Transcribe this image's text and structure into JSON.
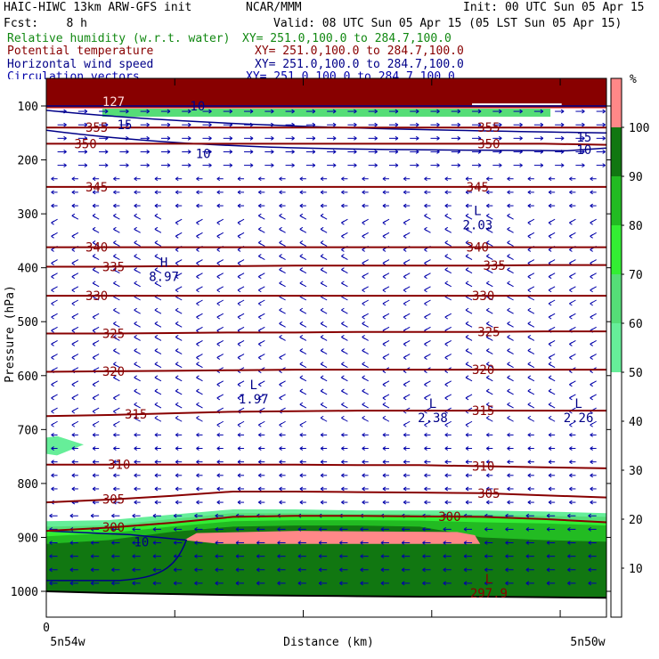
{
  "header": {
    "model_title": "HAIC-HIWC 13km ARW-GFS init",
    "org": "NCAR/MMM",
    "init": "Init: 00 UTC Sun 05 Apr 15",
    "fcst": "Fcst:    8 h",
    "valid": "Valid: 08 UTC Sun 05 Apr 15 (05 LST Sun 05 Apr 15)",
    "fields": [
      {
        "name": "Relative humidity (w.r.t. water)",
        "xy": "XY= 251.0,100.0 to 284.7,100.0",
        "color": "#118811"
      },
      {
        "name": "Potential temperature",
        "xy": "XY= 251.0,100.0 to 284.7,100.0",
        "color": "#880000"
      },
      {
        "name": "Horizontal wind speed",
        "xy": "XY= 251.0,100.0 to 284.7,100.0",
        "color": "#000088"
      },
      {
        "name": "Circulation vectors",
        "xy": "XY= 251.0,100.0 to 284.7,100.0",
        "color": "#0000aa"
      }
    ]
  },
  "chart_data": {
    "type": "cross-section",
    "ylabel": "Pressure (hPa)",
    "xlabel": "Distance (km)",
    "y_ticks": [
      100,
      200,
      300,
      400,
      500,
      600,
      700,
      800,
      900,
      1000
    ],
    "ylim": [
      70,
      1050
    ],
    "x_tick_labels": {
      "zero": "0",
      "left": "5n54w",
      "right": "5n50w"
    },
    "colorbar": {
      "unit": "%",
      "labels": [
        10,
        20,
        30,
        40,
        50,
        60,
        70,
        80,
        90,
        100
      ],
      "bands": [
        {
          "from": 50,
          "to": 60,
          "color": "#66ee99"
        },
        {
          "from": 60,
          "to": 70,
          "color": "#55dd77"
        },
        {
          "from": 70,
          "to": 80,
          "color": "#33ee33"
        },
        {
          "from": 80,
          "to": 90,
          "color": "#22bb22"
        },
        {
          "from": 90,
          "to": 100,
          "color": "#117711"
        },
        {
          "from": 100,
          "to": 110,
          "color": "#ff8888"
        }
      ]
    },
    "theta_contours": [
      {
        "value": 355,
        "label_xs": [
          0.09,
          0.79
        ]
      },
      {
        "value": 350,
        "label_xs": [
          0.07,
          0.79
        ]
      },
      {
        "value": 345,
        "label_xs": [
          0.09,
          0.77
        ]
      },
      {
        "value": 340,
        "label_xs": [
          0.09,
          0.77
        ]
      },
      {
        "value": 335,
        "label_xs": [
          0.12,
          0.8
        ]
      },
      {
        "value": 330,
        "label_xs": [
          0.09,
          0.78
        ]
      },
      {
        "value": 325,
        "label_xs": [
          0.12,
          0.79
        ]
      },
      {
        "value": 320,
        "label_xs": [
          0.12,
          0.78
        ]
      },
      {
        "value": 315,
        "label_xs": [
          0.16,
          0.78
        ]
      },
      {
        "value": 310,
        "label_xs": [
          0.13,
          0.78
        ]
      },
      {
        "value": 305,
        "label_xs": [
          0.12,
          0.79
        ]
      },
      {
        "value": 300,
        "label_xs": [
          0.12,
          0.72
        ]
      }
    ],
    "theta_levels_hpa": {
      "355": [
        140,
        140,
        140,
        140,
        140,
        140,
        140,
        140,
        140,
        140
      ],
      "350": [
        170,
        170,
        170,
        170,
        170,
        170,
        170,
        170,
        170,
        172
      ],
      "345": [
        250,
        250,
        250,
        250,
        250,
        250,
        250,
        250,
        250,
        250
      ],
      "340": [
        362,
        362,
        362,
        362,
        362,
        362,
        362,
        362,
        362,
        362
      ],
      "335": [
        398,
        398,
        397,
        397,
        396,
        396,
        396,
        396,
        395,
        395
      ],
      "330": [
        452,
        452,
        452,
        452,
        452,
        452,
        452,
        452,
        452,
        452
      ],
      "325": [
        522,
        522,
        521,
        520,
        520,
        519,
        519,
        519,
        518,
        518
      ],
      "320": [
        593,
        592,
        591,
        590,
        589,
        589,
        589,
        589,
        589,
        589
      ],
      "315": [
        675,
        673,
        670,
        667,
        666,
        665,
        665,
        665,
        665,
        665
      ],
      "310": [
        765,
        765,
        765,
        765,
        765,
        766,
        766,
        768,
        770,
        772
      ],
      "305": [
        835,
        830,
        823,
        815,
        815,
        816,
        817,
        818,
        822,
        826
      ],
      "300": [
        888,
        882,
        873,
        862,
        860,
        860,
        861,
        862,
        866,
        872
      ]
    },
    "wind_speed_labels": [
      {
        "value": "10",
        "x": 0.27,
        "p": 100
      },
      {
        "value": "15",
        "x": 0.14,
        "p": 135
      },
      {
        "value": "10",
        "x": 0.28,
        "p": 188
      },
      {
        "value": "15",
        "x": 0.96,
        "p": 158
      },
      {
        "value": "10",
        "x": 0.96,
        "p": 181
      },
      {
        "value": "10",
        "x": 0.17,
        "p": 908
      }
    ],
    "extrema": [
      {
        "type": "H",
        "value": "8.97",
        "x": 0.21,
        "p": 398
      },
      {
        "type": "L",
        "value": "2.03",
        "x": 0.77,
        "p": 302
      },
      {
        "type": "L",
        "value": "1.97",
        "x": 0.37,
        "p": 625
      },
      {
        "type": "L",
        "value": "2.38",
        "x": 0.69,
        "p": 660
      },
      {
        "type": "L",
        "value": "2.26",
        "x": 0.95,
        "p": 660
      },
      {
        "type": "L",
        "value": "297.9",
        "x": 0.79,
        "p": 985
      }
    ],
    "partial_label": "127",
    "rh_regions": [
      {
        "band": 100,
        "top_p": 72,
        "bottom_p": 105,
        "x0": 0,
        "x1": 1
      },
      {
        "band": 60,
        "top_p": 105,
        "bottom_p": 120,
        "x0": 0.1,
        "x1": 0.9
      },
      {
        "band": 50,
        "top": [
          870,
          868,
          858,
          848,
          848,
          850,
          850,
          850,
          852,
          855
        ],
        "bottom": 1045
      },
      {
        "band": 60,
        "top": [
          880,
          878,
          866,
          855,
          855,
          857,
          857,
          858,
          860,
          862
        ],
        "bottom": 1045
      },
      {
        "band": 70,
        "top": [
          888,
          884,
          872,
          862,
          861,
          862,
          862,
          864,
          866,
          870
        ],
        "bottom": 1045
      },
      {
        "band": 80,
        "top": [
          898,
          892,
          880,
          870,
          868,
          868,
          869,
          872,
          874,
          878
        ],
        "bottom": 1045
      },
      {
        "band": 90,
        "top": [
          912,
          905,
          890,
          880,
          878,
          878,
          880,
          900,
          905,
          908
        ],
        "bottom": 1045
      },
      {
        "band": 100,
        "top": [
          0,
          0,
          900,
          880,
          880,
          880,
          882,
          900,
          0,
          0
        ],
        "bottom": 0
      }
    ],
    "terrain_p": [
      1000,
      1003,
      1005,
      1007,
      1008,
      1009,
      1010,
      1010,
      1011,
      1012
    ]
  }
}
